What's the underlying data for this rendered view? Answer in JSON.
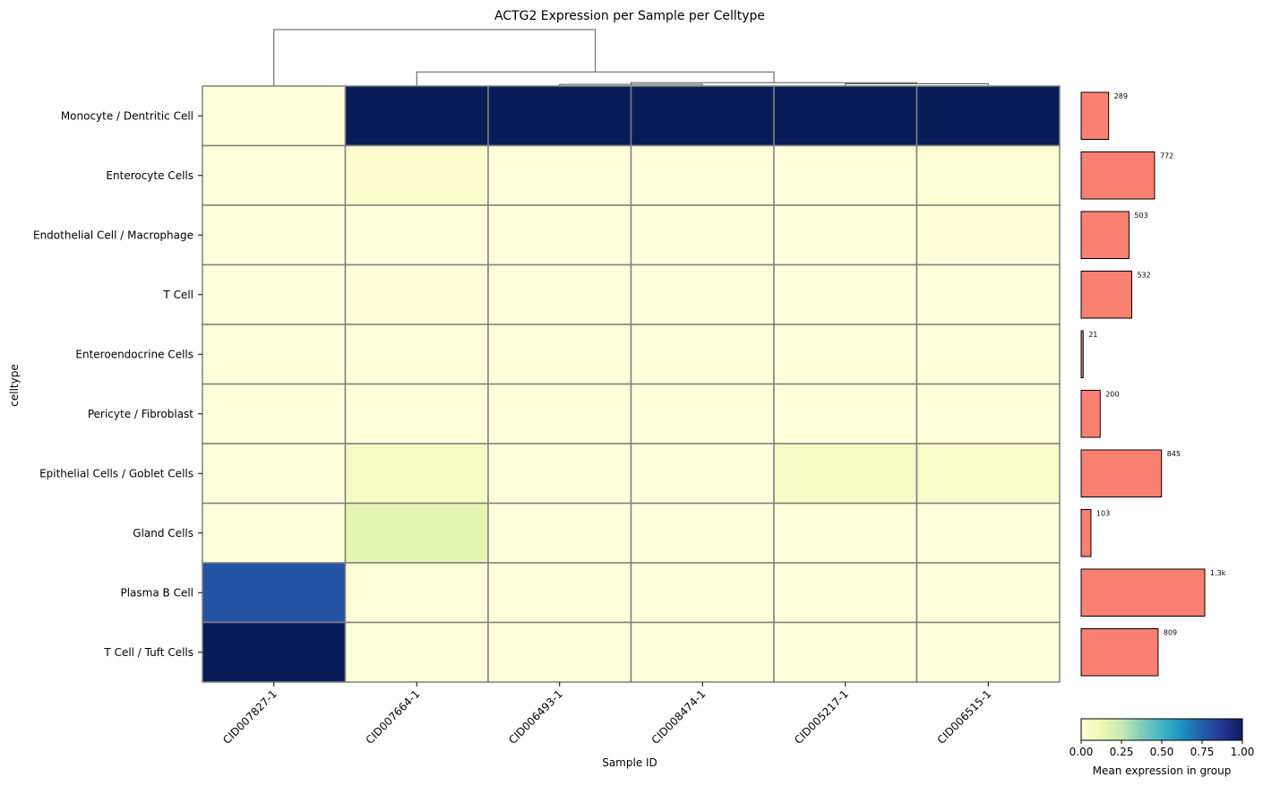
{
  "chart_data": {
    "type": "heatmap",
    "title": "ACTG2 Expression per Sample per Celltype",
    "xlabel": "Sample ID",
    "ylabel": "celltype",
    "samples": [
      "CID007827-1",
      "CID007664-1",
      "CID006493-1",
      "CID008474-1",
      "CID005217-1",
      "CID006515-1"
    ],
    "celltypes": [
      "Monocyte / Dentritic Cell",
      "Enterocyte Cells",
      "Endothelial Cell / Macrophage",
      "T Cell",
      "Enteroendocrine Cells",
      "Pericyte / Fibroblast",
      "Epithelial Cells / Goblet Cells",
      "Gland Cells",
      "Plasma B Cell",
      "T Cell / Tuft Cells"
    ],
    "values": [
      [
        0.0,
        1.0,
        1.0,
        1.0,
        1.0,
        1.0
      ],
      [
        0.0,
        0.03,
        0.0,
        0.0,
        0.0,
        0.02
      ],
      [
        0.0,
        0.0,
        0.0,
        0.0,
        0.0,
        0.01
      ],
      [
        0.0,
        0.01,
        0.0,
        0.0,
        0.0,
        0.0
      ],
      [
        0.0,
        0.0,
        0.0,
        0.0,
        0.0,
        0.0
      ],
      [
        0.0,
        0.0,
        0.0,
        0.0,
        0.0,
        0.0
      ],
      [
        0.0,
        0.07,
        0.0,
        0.0,
        0.06,
        0.04
      ],
      [
        0.0,
        0.15,
        0.0,
        0.0,
        0.0,
        0.0
      ],
      [
        0.78,
        0.0,
        0.0,
        0.0,
        0.0,
        0.0
      ],
      [
        1.0,
        0.0,
        0.0,
        0.0,
        0.0,
        0.0
      ]
    ],
    "cell_counts": {
      "values": [
        289,
        772,
        503,
        532,
        21,
        200,
        845,
        103,
        1300,
        809
      ],
      "labels": [
        "289",
        "772",
        "503",
        "532",
        "21",
        "200",
        "845",
        "103",
        "1.3k",
        "809"
      ],
      "bar_color": "#fa8072"
    },
    "colorbar": {
      "label": "Mean expression in group",
      "range": [
        0,
        1
      ],
      "ticks": [
        "0.00",
        "0.25",
        "0.50",
        "0.75",
        "1.00"
      ],
      "colormap": "YlGnBu"
    },
    "dendrogram": {
      "leaf_order": [
        "CID007827-1",
        "CID007664-1",
        "CID006493-1",
        "CID008474-1",
        "CID005217-1",
        "CID006515-1"
      ],
      "merges": [
        [
          2,
          3,
          0.03
        ],
        [
          4,
          5,
          0.04
        ],
        [
          6,
          7,
          0.06
        ],
        [
          1,
          8,
          0.25
        ],
        [
          0,
          9,
          1.0
        ]
      ]
    },
    "grid": true
  }
}
